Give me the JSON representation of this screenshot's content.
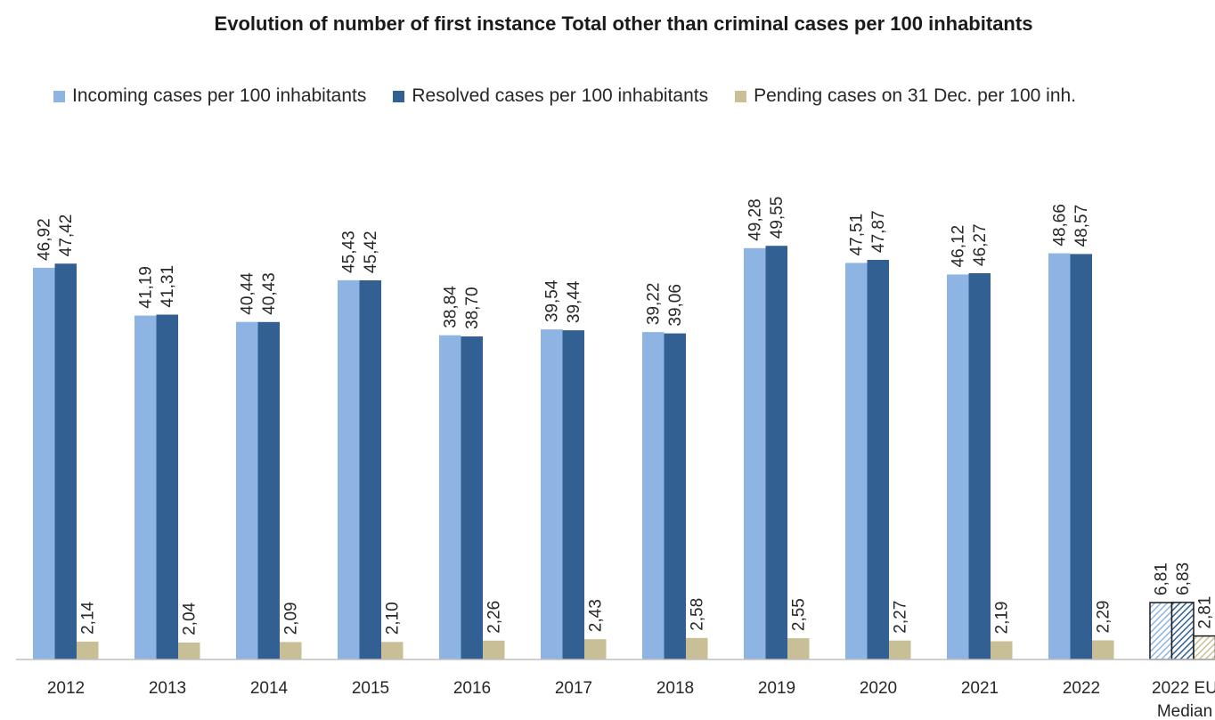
{
  "chart_data": {
    "type": "bar",
    "title": "Evolution of number of first instance Total other than criminal cases per 100 inhabitants",
    "categories": [
      [
        "2012"
      ],
      [
        "2013"
      ],
      [
        "2014"
      ],
      [
        "2015"
      ],
      [
        "2016"
      ],
      [
        "2017"
      ],
      [
        "2018"
      ],
      [
        "2019"
      ],
      [
        "2020"
      ],
      [
        "2021"
      ],
      [
        "2022"
      ],
      [
        "2022 EU",
        "Median"
      ]
    ],
    "series": [
      {
        "name": "Incoming cases per 100 inhabitants",
        "color": "#8eb4e3",
        "values": [
          46.92,
          41.19,
          40.44,
          45.43,
          38.84,
          39.54,
          39.22,
          49.28,
          47.51,
          46.12,
          48.66,
          6.81
        ],
        "labels": [
          "46,92",
          "41,19",
          "40,44",
          "45,43",
          "38,84",
          "39,54",
          "39,22",
          "49,28",
          "47,51",
          "46,12",
          "48,66",
          "6,81"
        ]
      },
      {
        "name": "Resolved cases per 100 inhabitants",
        "color": "#336093",
        "values": [
          47.42,
          41.31,
          40.43,
          45.42,
          38.7,
          39.44,
          39.06,
          49.55,
          47.87,
          46.27,
          48.57,
          6.83
        ],
        "labels": [
          "47,42",
          "41,31",
          "40,43",
          "45,42",
          "38,70",
          "39,44",
          "39,06",
          "49,55",
          "47,87",
          "46,27",
          "48,57",
          "6,83"
        ]
      },
      {
        "name": "Pending cases on 31 Dec. per 100 inh.",
        "color": "#c9bf96",
        "values": [
          2.14,
          2.04,
          2.09,
          2.1,
          2.26,
          2.43,
          2.58,
          2.55,
          2.27,
          2.19,
          2.29,
          2.81
        ],
        "labels": [
          "2,14",
          "2,04",
          "2,09",
          "2,10",
          "2,26",
          "2,43",
          "2,58",
          "2,55",
          "2,27",
          "2,19",
          "2,29",
          "2,81"
        ]
      }
    ],
    "hatched_category_index": 11,
    "legend_position": "top",
    "grid": false
  }
}
